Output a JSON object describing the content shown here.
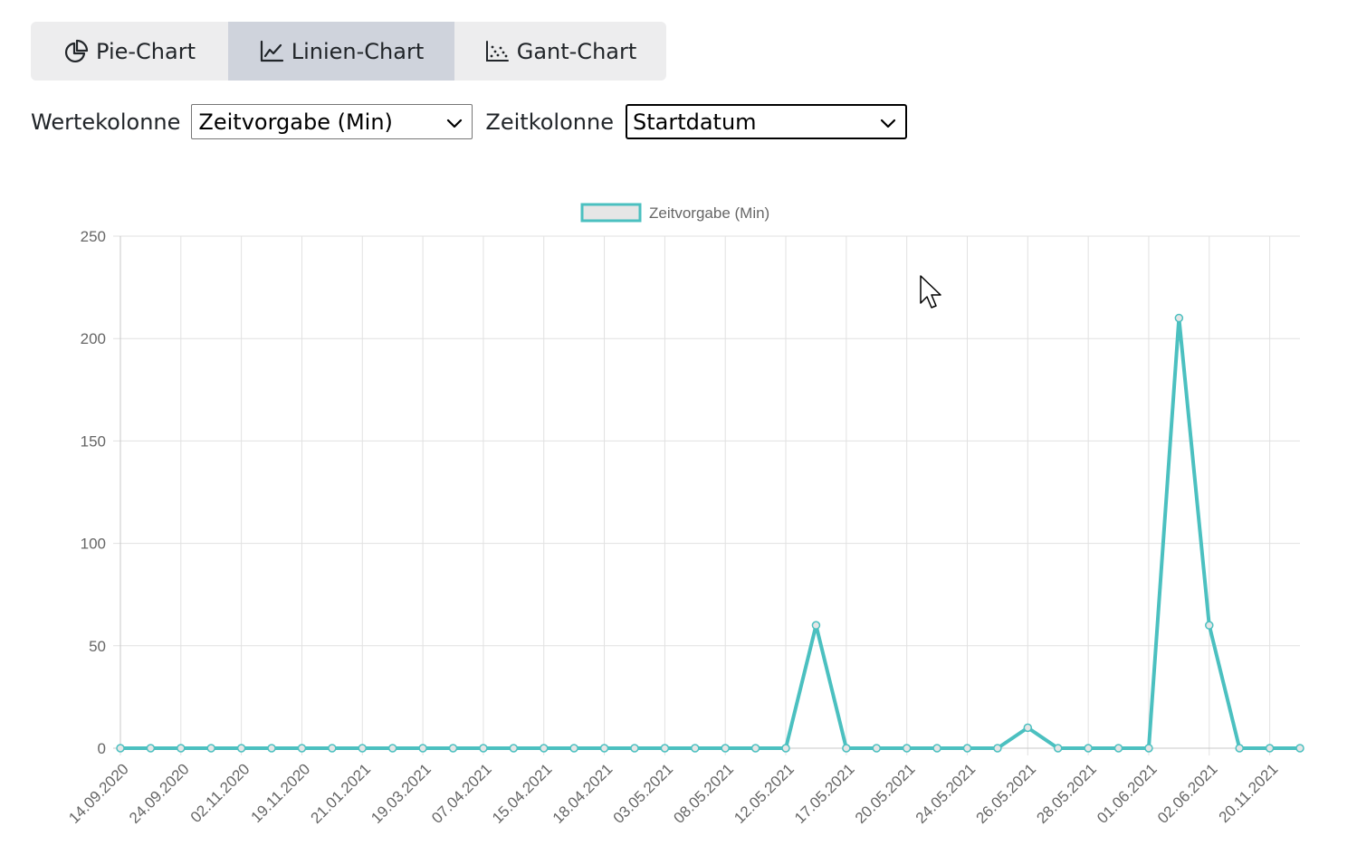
{
  "tabs": [
    {
      "label": "Pie-Chart",
      "icon": "pie-chart-icon",
      "active": false
    },
    {
      "label": "Linien-Chart",
      "icon": "line-chart-icon",
      "active": true
    },
    {
      "label": "Gant-Chart",
      "icon": "scatter-chart-icon",
      "active": false
    }
  ],
  "controls": {
    "value_column_label": "Wertekolonne",
    "value_column_selected": "Zeitvorgabe (Min)",
    "time_column_label": "Zeitkolonne",
    "time_column_selected": "Startdatum"
  },
  "chart_data": {
    "type": "line",
    "title": "",
    "xlabel": "",
    "ylabel": "",
    "ylim": [
      0,
      250
    ],
    "yticks": [
      0,
      50,
      100,
      150,
      200,
      250
    ],
    "grid": true,
    "legend_position": "top-center",
    "x_tick_labels": [
      "14.09.2020",
      "24.09.2020",
      "02.11.2020",
      "19.11.2020",
      "21.01.2021",
      "19.03.2021",
      "07.04.2021",
      "15.04.2021",
      "18.04.2021",
      "03.05.2021",
      "08.05.2021",
      "12.05.2021",
      "17.05.2021",
      "20.05.2021",
      "24.05.2021",
      "26.05.2021",
      "28.05.2021",
      "01.06.2021",
      "02.06.2021",
      "20.11.2021"
    ],
    "series": [
      {
        "name": "Zeitvorgabe (Min)",
        "color": "#4bc0c0",
        "fill": "#e6e6e6",
        "values": [
          0,
          0,
          0,
          0,
          0,
          0,
          0,
          0,
          0,
          0,
          0,
          0,
          0,
          0,
          0,
          0,
          0,
          0,
          0,
          0,
          0,
          0,
          0,
          60,
          0,
          0,
          0,
          0,
          0,
          0,
          10,
          0,
          0,
          0,
          0,
          210,
          60,
          0,
          0,
          0
        ]
      }
    ]
  }
}
